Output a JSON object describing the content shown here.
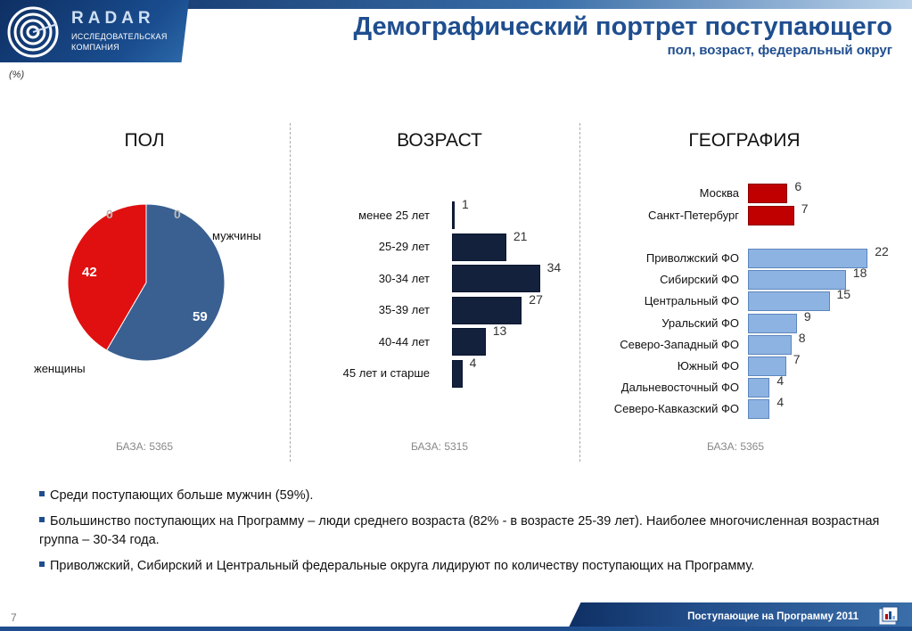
{
  "header": {
    "logo_name": "RADAR",
    "logo_sub_line1": "ИССЛЕДОВАТЕЛЬСКАЯ",
    "logo_sub_line2": "КОМПАНИЯ",
    "title": "Демографический портрет поступающего",
    "subtitle": "пол, возраст, федеральный округ",
    "units": "(%)"
  },
  "colors": {
    "brand": "#1f4e8f",
    "male": "#3a5f91",
    "female": "#e01010",
    "age_bars": "#14213d",
    "cities": "#c00000",
    "districts": "#8db3e2"
  },
  "chart_data": [
    {
      "type": "pie",
      "title": "ПОЛ",
      "labels": [
        "мужчины",
        "женщины"
      ],
      "values": [
        59,
        42
      ],
      "data_labels": [
        "59",
        "42"
      ],
      "extra_labels": [
        "0",
        "0"
      ],
      "base": "БАЗА: 5365"
    },
    {
      "type": "bar",
      "orientation": "horizontal",
      "title": "ВОЗРАСТ",
      "categories": [
        "менее 25 лет",
        "25-29 лет",
        "30-34 лет",
        "35-39 лет",
        "40-44 лет",
        "45 лет и старше"
      ],
      "values": [
        1,
        21,
        34,
        27,
        13,
        4
      ],
      "base": "БАЗА: 5315"
    },
    {
      "type": "bar",
      "orientation": "horizontal",
      "title": "ГЕОГРАФИЯ",
      "groups": [
        {
          "categories": [
            "Москва",
            "Санкт-Петербург"
          ],
          "values": [
            6,
            7
          ]
        },
        {
          "categories": [
            "Приволжский ФО",
            "Сибирский ФО",
            "Центральный ФО",
            "Уральский ФО",
            "Северо-Западный ФО",
            "Южный ФО",
            "Дальневосточный ФО",
            "Северо-Кавказский ФО"
          ],
          "values": [
            22,
            18,
            15,
            9,
            8,
            7,
            4,
            4
          ]
        }
      ],
      "base": "БАЗА: 5365"
    }
  ],
  "summary": [
    "Среди поступающих больше мужчин (59%).",
    "Большинство поступающих на Программу – люди среднего возраста (82% - в возрасте 25-39 лет). Наиболее многочисленная возрастная группа – 30-34 года.",
    "Приволжский, Сибирский и Центральный федеральные округа лидируют по количеству поступающих на Программу."
  ],
  "footer": {
    "page_number": "7",
    "text": "Поступающие на Программу 2011"
  }
}
